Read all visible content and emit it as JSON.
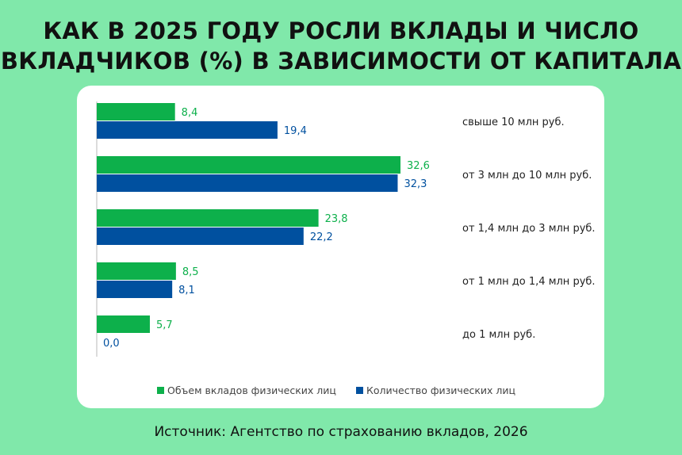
{
  "title_line1": "КАК В 2025 ГОДУ РОСЛИ ВКЛАДЫ И ЧИСЛО",
  "title_line2": "ВКЛАДЧИКОВ (%) В ЗАВИСИМОСТИ ОТ КАПИТАЛА",
  "source": "Источник: Агентство по страхованию вкладов, 2026",
  "chart_data": {
    "type": "bar",
    "orientation": "horizontal",
    "categories": [
      "свыше 10 млн руб.",
      "от 3 млн до 10 млн руб.",
      "от 1,4 млн до 3 млн руб.",
      "от 1 млн до 1,4 млн руб.",
      "до 1 млн руб."
    ],
    "series": [
      {
        "name": "Объем вкладов физических лиц",
        "color": "#0db04b",
        "values": [
          8.4,
          32.6,
          23.8,
          8.5,
          5.7
        ],
        "labels": [
          "8,4",
          "32,6",
          "23,8",
          "8,5",
          "5,7"
        ]
      },
      {
        "name": "Количество физических лиц",
        "color": "#00509f",
        "values": [
          19.4,
          32.3,
          22.2,
          8.1,
          0.0
        ],
        "labels": [
          "19,4",
          "32,3",
          "22,2",
          "8,1",
          "0,0"
        ]
      }
    ],
    "xlim": [
      0,
      35
    ],
    "legend": "bottom"
  }
}
